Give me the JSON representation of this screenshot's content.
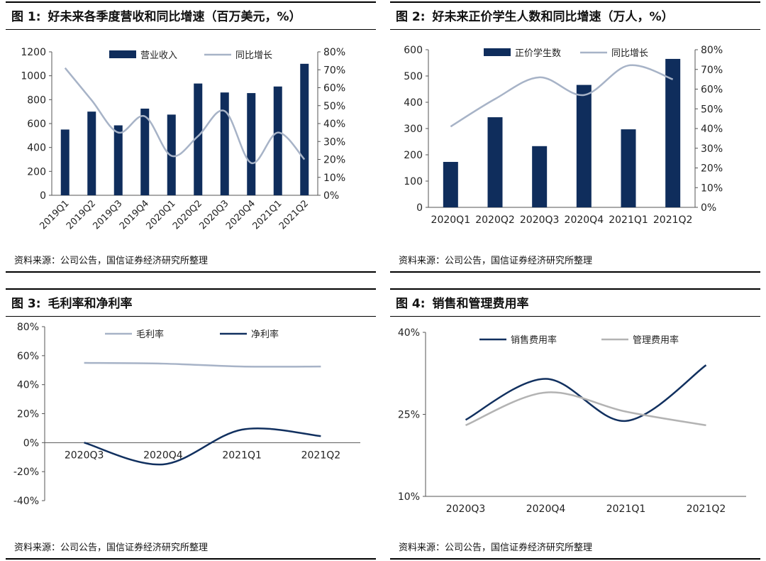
{
  "source_note": "资料来源：公司公告，国信证券经济研究所整理",
  "colors": {
    "bar": "#0f2d5c",
    "growth_line": "#a7b3c7",
    "net_margin": "#11305f",
    "gross_margin": "#a7b3c7",
    "admin_rate": "#b3b3b3",
    "axis": "#555555"
  },
  "chart_data": [
    {
      "figure_no": "图 1:",
      "title": "好未来各季度营收和同比增速（百万美元，%）",
      "type": "bar",
      "categories": [
        "2019Q1",
        "2019Q2",
        "2019Q3",
        "2019Q4",
        "2020Q1",
        "2020Q2",
        "2020Q3",
        "2020Q4",
        "2021Q1",
        "2021Q2"
      ],
      "series": [
        {
          "name": "营业收入",
          "type": "bar",
          "axis": "left",
          "values": [
            550,
            700,
            585,
            725,
            675,
            935,
            860,
            855,
            910,
            1100
          ]
        },
        {
          "name": "同比增长",
          "type": "line",
          "axis": "right",
          "values": [
            71,
            53,
            35,
            44,
            22,
            33,
            47,
            18,
            35,
            20
          ]
        }
      ],
      "ylim": [
        0,
        1200
      ],
      "y_ticks": [
        "0",
        "200",
        "400",
        "600",
        "800",
        "1000",
        "1200"
      ],
      "y2lim": [
        0,
        80
      ],
      "y2_ticks": [
        "0%",
        "10%",
        "20%",
        "30%",
        "40%",
        "50%",
        "60%",
        "70%",
        "80%"
      ],
      "legend_position": "top",
      "grid": false
    },
    {
      "figure_no": "图 2:",
      "title": "好未来正价学生人数和同比增速（万人，%）",
      "type": "bar",
      "categories": [
        "2020Q1",
        "2020Q2",
        "2020Q3",
        "2020Q4",
        "2021Q1",
        "2021Q2"
      ],
      "series": [
        {
          "name": "正价学生数",
          "type": "bar",
          "axis": "left",
          "values": [
            173,
            343,
            233,
            466,
            297,
            565
          ]
        },
        {
          "name": "同比增长",
          "type": "line",
          "axis": "right",
          "values": [
            41,
            55,
            66,
            57,
            72,
            65
          ]
        }
      ],
      "ylim": [
        0,
        600
      ],
      "y_ticks": [
        "0",
        "100",
        "200",
        "300",
        "400",
        "500",
        "600"
      ],
      "y2lim": [
        0,
        80
      ],
      "y2_ticks": [
        "0%",
        "10%",
        "20%",
        "30%",
        "40%",
        "50%",
        "60%",
        "70%",
        "80%"
      ],
      "legend_position": "top",
      "grid": false
    },
    {
      "figure_no": "图 3:",
      "title": "毛利率和净利率",
      "type": "line",
      "categories": [
        "2020Q3",
        "2020Q4",
        "2021Q1",
        "2021Q2"
      ],
      "series": [
        {
          "name": "毛利率",
          "values": [
            55,
            54.5,
            52.5,
            52.5
          ]
        },
        {
          "name": "净利率",
          "values": [
            0,
            -15,
            9,
            4.5
          ]
        }
      ],
      "ylim": [
        -40,
        80
      ],
      "y_ticks": [
        "-40%",
        "-20%",
        "0%",
        "20%",
        "40%",
        "60%",
        "80%"
      ],
      "legend_position": "top",
      "grid": false
    },
    {
      "figure_no": "图 4:",
      "title": "销售和管理费用率",
      "type": "line",
      "categories": [
        "2020Q3",
        "2020Q4",
        "2021Q1",
        "2021Q2"
      ],
      "series": [
        {
          "name": "销售费用率",
          "values": [
            24,
            31.5,
            23.8,
            34
          ]
        },
        {
          "name": "管理费用率",
          "values": [
            23,
            29,
            25.5,
            23
          ]
        }
      ],
      "ylim": [
        10,
        40
      ],
      "y_ticks": [
        "10%",
        "25%",
        "40%"
      ],
      "legend_position": "top",
      "grid": false
    }
  ]
}
